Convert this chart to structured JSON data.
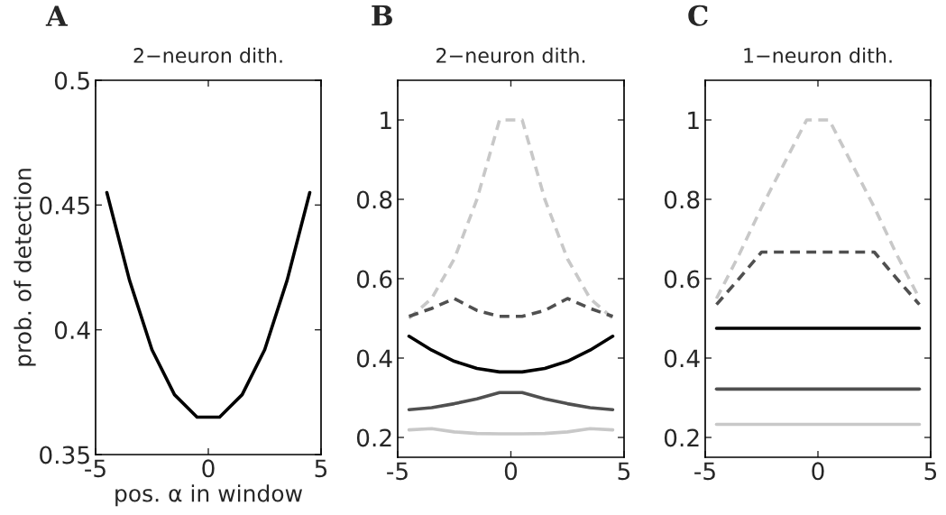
{
  "chart_data": [
    {
      "type": "line",
      "title": "2−neuron dith.",
      "xlabel": "pos. α in window",
      "ylabel": "prob. of detection",
      "annotations": [
        "A"
      ],
      "x": [
        -4.5,
        -3.5,
        -2.5,
        -1.5,
        -0.5,
        0.5,
        1.5,
        2.5,
        3.5,
        4.5
      ],
      "series": [
        {
          "color": "#000000",
          "line_style": "solid",
          "values": [
            0.455,
            0.42,
            0.392,
            0.374,
            0.365,
            0.365,
            0.374,
            0.392,
            0.42,
            0.455
          ]
        }
      ],
      "xlim": [
        -5,
        5
      ],
      "xticks": [
        -5,
        0,
        5
      ],
      "ylim": [
        0.35,
        0.5
      ],
      "yticks": [
        0.35,
        0.4,
        0.45,
        0.5
      ],
      "grid": false,
      "legend": false
    },
    {
      "type": "line",
      "title": "2−neuron dith.",
      "annotations": [
        "B"
      ],
      "x": [
        -4.5,
        -3.5,
        -2.5,
        -1.5,
        -0.5,
        0.5,
        1.5,
        2.5,
        3.5,
        4.5
      ],
      "series": [
        {
          "color": "#c8c8c8",
          "line_style": "dashed",
          "values": [
            0.5,
            0.55,
            0.65,
            0.8,
            1,
            1,
            0.8,
            0.65,
            0.55,
            0.5
          ]
        },
        {
          "color": "#505050",
          "line_style": "dashed",
          "values": [
            0.505,
            0.525,
            0.55,
            0.52,
            0.505,
            0.505,
            0.52,
            0.55,
            0.525,
            0.505
          ]
        },
        {
          "color": "#000000",
          "line_style": "solid",
          "values": [
            0.455,
            0.42,
            0.392,
            0.374,
            0.365,
            0.365,
            0.374,
            0.392,
            0.42,
            0.455
          ]
        },
        {
          "color": "#505050",
          "line_style": "solid",
          "values": [
            0.27,
            0.275,
            0.285,
            0.297,
            0.313,
            0.313,
            0.297,
            0.285,
            0.275,
            0.27
          ]
        },
        {
          "color": "#c8c8c8",
          "line_style": "solid",
          "values": [
            0.219,
            0.222,
            0.214,
            0.21,
            0.209,
            0.209,
            0.21,
            0.214,
            0.222,
            0.219
          ]
        }
      ],
      "xlim": [
        -5,
        5
      ],
      "xticks": [
        -5,
        0,
        5
      ],
      "ylim": [
        0.15,
        1.1
      ],
      "yticks": [
        0.2,
        0.4,
        0.6,
        0.8,
        1
      ],
      "grid": false,
      "legend": false
    },
    {
      "type": "line",
      "title": "1−neuron dith.",
      "annotations": [
        "C"
      ],
      "x": [
        -4.5,
        -3.5,
        -2.5,
        -1.5,
        -0.5,
        0.5,
        1.5,
        2.5,
        3.5,
        4.5
      ],
      "series": [
        {
          "color": "#c8c8c8",
          "line_style": "dashed",
          "values": [
            0.55,
            0.66,
            0.78,
            0.89,
            1,
            1,
            0.89,
            0.78,
            0.66,
            0.55
          ]
        },
        {
          "color": "#505050",
          "line_style": "dashed",
          "values": [
            0.535,
            0.6,
            0.667,
            0.667,
            0.667,
            0.667,
            0.667,
            0.667,
            0.6,
            0.535
          ]
        },
        {
          "color": "#000000",
          "line_style": "solid",
          "values": [
            0.475,
            0.475,
            0.475,
            0.475,
            0.475,
            0.475,
            0.475,
            0.475,
            0.475,
            0.475
          ]
        },
        {
          "color": "#505050",
          "line_style": "solid",
          "values": [
            0.322,
            0.322,
            0.322,
            0.322,
            0.322,
            0.322,
            0.322,
            0.322,
            0.322,
            0.322
          ]
        },
        {
          "color": "#c8c8c8",
          "line_style": "solid",
          "values": [
            0.233,
            0.233,
            0.233,
            0.233,
            0.233,
            0.233,
            0.233,
            0.233,
            0.233,
            0.233
          ]
        }
      ],
      "xlim": [
        -5,
        5
      ],
      "xticks": [
        -5,
        0,
        5
      ],
      "ylim": [
        0.15,
        1.1
      ],
      "yticks": [
        0.2,
        0.4,
        0.6,
        0.8,
        1
      ],
      "grid": false,
      "legend": false
    }
  ]
}
